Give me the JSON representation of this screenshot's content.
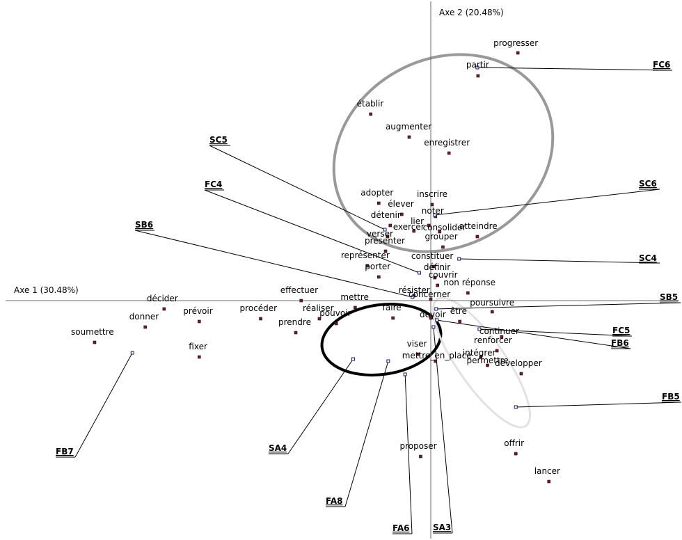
{
  "chart_data": {
    "type": "scatter",
    "x_axis_label": "Axe 1 (30.48%)",
    "y_axis_label": "Axe 2 (20.48%)",
    "grid": false,
    "colors": {
      "point_fill": "#6b1f2a",
      "point_stroke": "#2a0a10",
      "supp_fill": "#ffffff",
      "supp_stroke": "#1a1a6b",
      "axis": "#6a6a6a",
      "connector": "#000000",
      "ellipse_gray": "#999999",
      "ellipse_black": "#000000",
      "ellipse_light": "#e2e2e2"
    },
    "words": [
      {
        "label": "progresser",
        "x": 1.29,
        "y": 3.56
      },
      {
        "label": "partir",
        "x": 0.7,
        "y": 3.23
      },
      {
        "label": "établir",
        "x": -0.89,
        "y": 2.68
      },
      {
        "label": "augmenter",
        "x": -0.32,
        "y": 2.35
      },
      {
        "label": "enregistrer",
        "x": 0.27,
        "y": 2.12
      },
      {
        "label": "inscrire",
        "x": 0.02,
        "y": 1.38
      },
      {
        "label": "adopter",
        "x": -0.77,
        "y": 1.4
      },
      {
        "label": "élever",
        "x": -0.43,
        "y": 1.24
      },
      {
        "label": "noter",
        "x": 0.07,
        "y": 1.21
      },
      {
        "label": "détenir",
        "x": -0.6,
        "y": 1.08
      },
      {
        "label": "lier",
        "x": -0.03,
        "y": 1.08
      },
      {
        "label": "exercer",
        "x": -0.25,
        "y": 1.0
      },
      {
        "label": "consolider",
        "x": 0.13,
        "y": 0.99
      },
      {
        "label": "verser",
        "x": -0.64,
        "y": 0.92
      },
      {
        "label": "atteindre",
        "x": 0.69,
        "y": 0.92
      },
      {
        "label": "grouper",
        "x": 0.18,
        "y": 0.77
      },
      {
        "label": "présenter",
        "x": -0.67,
        "y": 0.71
      },
      {
        "label": "constituer",
        "x": 0.04,
        "y": 0.49
      },
      {
        "label": "représenter",
        "x": -0.94,
        "y": 0.5
      },
      {
        "label": "définir",
        "x": 0.06,
        "y": 0.33
      },
      {
        "label": "porter",
        "x": -0.77,
        "y": 0.34
      },
      {
        "label": "couvrir",
        "x": 0.1,
        "y": 0.22
      },
      {
        "label": "non réponse",
        "x": 0.55,
        "y": 0.11
      },
      {
        "label": "résister",
        "x": -0.25,
        "y": 0.07
      },
      {
        "label": "concerner",
        "x": 0.0,
        "y": 0.02
      },
      {
        "label": "effectuer",
        "x": -1.92,
        "y": 0.0
      },
      {
        "label": "mettre",
        "x": -1.12,
        "y": -0.1
      },
      {
        "label": "décider",
        "x": -3.95,
        "y": -0.12
      },
      {
        "label": "faire",
        "x": -0.56,
        "y": -0.25
      },
      {
        "label": "devoir",
        "x": 0.0,
        "y": -0.25
      },
      {
        "label": "poursuivre",
        "x": 0.91,
        "y": -0.16
      },
      {
        "label": "procéder",
        "x": -2.52,
        "y": -0.26
      },
      {
        "label": "réaliser",
        "x": -1.65,
        "y": -0.26
      },
      {
        "label": "pouvoir",
        "x": -1.4,
        "y": -0.33
      },
      {
        "label": "prévoir",
        "x": -3.43,
        "y": -0.3
      },
      {
        "label": "donner",
        "x": -4.23,
        "y": -0.38
      },
      {
        "label": "prendre",
        "x": -2.0,
        "y": -0.46
      },
      {
        "label": "être",
        "x": 0.43,
        "y": -0.3
      },
      {
        "label": "continuer",
        "x": 1.05,
        "y": -0.52
      },
      {
        "label": "soumettre",
        "x": -4.98,
        "y": -0.6
      },
      {
        "label": "fixer",
        "x": -3.43,
        "y": -0.81
      },
      {
        "label": "viser",
        "x": -0.19,
        "y": -0.77
      },
      {
        "label": "renforcer",
        "x": 0.98,
        "y": -0.72
      },
      {
        "label": "intégrer",
        "x": 0.74,
        "y": -0.81
      },
      {
        "label": "mettre_en_place",
        "x": 0.07,
        "y": -0.87
      },
      {
        "label": "permettre",
        "x": 0.84,
        "y": -0.93
      },
      {
        "label": "développer",
        "x": 1.34,
        "y": -1.05
      },
      {
        "label": "offrir",
        "x": 1.26,
        "y": -2.2
      },
      {
        "label": "proposer",
        "x": -0.15,
        "y": -2.24
      },
      {
        "label": "lancer",
        "x": 1.75,
        "y": -2.6
      }
    ],
    "groups": [
      {
        "label": "FC6",
        "x": 0.69,
        "y": 3.35
      },
      {
        "label": "SC5",
        "x": -0.68,
        "y": 1.02
      },
      {
        "label": "FC4",
        "x": -0.17,
        "y": 0.4
      },
      {
        "label": "SC6",
        "x": 0.06,
        "y": 1.23
      },
      {
        "label": "SC4",
        "x": 0.42,
        "y": 0.6
      },
      {
        "label": "SB6",
        "x": -0.27,
        "y": 0.05
      },
      {
        "label": "SB5",
        "x": 0.08,
        "y": -0.12
      },
      {
        "label": "FC5",
        "x": 0.72,
        "y": -0.41
      },
      {
        "label": "FB6",
        "x": 0.09,
        "y": -0.28
      },
      {
        "label": "FB5",
        "x": 1.26,
        "y": -1.53
      },
      {
        "label": "FB7",
        "x": -4.42,
        "y": -0.75
      },
      {
        "label": "SA4",
        "x": -1.15,
        "y": -0.84
      },
      {
        "label": "FA8",
        "x": -0.63,
        "y": -0.87
      },
      {
        "label": "FA6",
        "x": -0.38,
        "y": -1.06
      },
      {
        "label": "SA3",
        "x": 0.04,
        "y": -0.38
      }
    ]
  }
}
